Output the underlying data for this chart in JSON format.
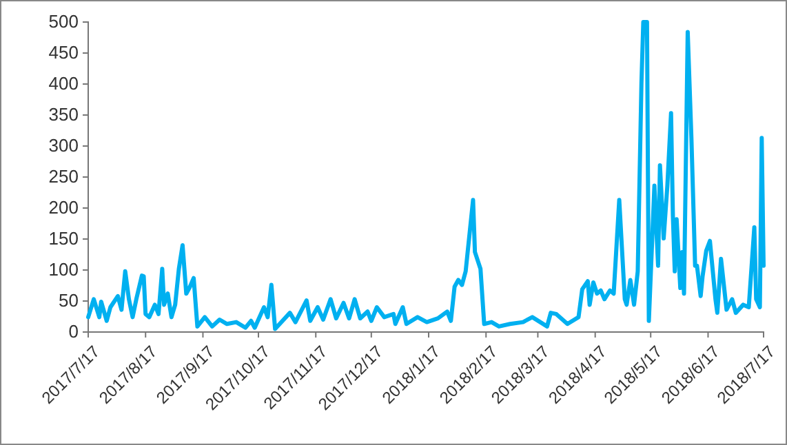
{
  "chart_data": {
    "type": "line",
    "xlim": [
      "2017-07-17",
      "2018-07-17"
    ],
    "ylim": [
      0,
      500
    ],
    "yticks": [
      0,
      50,
      100,
      150,
      200,
      250,
      300,
      350,
      400,
      450,
      500
    ],
    "xticks": [
      {
        "value": "2017-07-17",
        "label": "2017/7/17"
      },
      {
        "value": "2017-08-17",
        "label": "2017/8/17"
      },
      {
        "value": "2017-09-17",
        "label": "2017/9/17"
      },
      {
        "value": "2017-10-17",
        "label": "2017/10/17"
      },
      {
        "value": "2017-11-17",
        "label": "2017/11/17"
      },
      {
        "value": "2017-12-17",
        "label": "2017/12/17"
      },
      {
        "value": "2018-01-17",
        "label": "2018/1/17"
      },
      {
        "value": "2018-02-17",
        "label": "2018/2/17"
      },
      {
        "value": "2018-03-17",
        "label": "2018/3/17"
      },
      {
        "value": "2018-04-17",
        "label": "2018/4/17"
      },
      {
        "value": "2018-05-17",
        "label": "2018/5/17"
      },
      {
        "value": "2018-06-17",
        "label": "2018/6/17"
      },
      {
        "value": "2018-07-17",
        "label": "2018/7/17"
      }
    ],
    "grid": false,
    "marker": "none",
    "line_style": "solid",
    "series": [
      {
        "color": "#00b0f0",
        "x": [
          "2017-07-17",
          "2017-07-20",
          "2017-07-23",
          "2017-07-24",
          "2017-07-27",
          "2017-07-29",
          "2017-08-02",
          "2017-08-04",
          "2017-08-06",
          "2017-08-08",
          "2017-08-10",
          "2017-08-12",
          "2017-08-15",
          "2017-08-16",
          "2017-08-17",
          "2017-08-19",
          "2017-08-22",
          "2017-08-24",
          "2017-08-26",
          "2017-08-27",
          "2017-08-29",
          "2017-08-31",
          "2017-09-02",
          "2017-09-04",
          "2017-09-06",
          "2017-09-08",
          "2017-09-10",
          "2017-09-12",
          "2017-09-14",
          "2017-09-18",
          "2017-09-22",
          "2017-09-26",
          "2017-09-30",
          "2017-10-05",
          "2017-10-10",
          "2017-10-13",
          "2017-10-15",
          "2017-10-20",
          "2017-10-22",
          "2017-10-24",
          "2017-10-26",
          "2017-11-03",
          "2017-11-06",
          "2017-11-12",
          "2017-11-14",
          "2017-11-18",
          "2017-11-21",
          "2017-11-25",
          "2017-11-28",
          "2017-12-02",
          "2017-12-05",
          "2017-12-08",
          "2017-12-11",
          "2017-12-15",
          "2017-12-17",
          "2017-12-20",
          "2017-12-24",
          "2017-12-29",
          "2017-12-30",
          "2018-01-03",
          "2018-01-05",
          "2018-01-11",
          "2018-01-16",
          "2018-01-22",
          "2018-01-27",
          "2018-01-29",
          "2018-01-31",
          "2018-02-02",
          "2018-02-04",
          "2018-02-06",
          "2018-02-10",
          "2018-02-11",
          "2018-02-14",
          "2018-02-16",
          "2018-02-20",
          "2018-02-24",
          "2018-03-02",
          "2018-03-09",
          "2018-03-14",
          "2018-03-22",
          "2018-03-24",
          "2018-03-27",
          "2018-04-02",
          "2018-04-08",
          "2018-04-10",
          "2018-04-13",
          "2018-04-14",
          "2018-04-16",
          "2018-04-18",
          "2018-04-20",
          "2018-04-22",
          "2018-04-25",
          "2018-04-27",
          "2018-04-30",
          "2018-05-03",
          "2018-05-04",
          "2018-05-06",
          "2018-05-08",
          "2018-05-10",
          "2018-05-12",
          "2018-05-13",
          "2018-05-15",
          "2018-05-16",
          "2018-05-19",
          "2018-05-21",
          "2018-05-22",
          "2018-05-24",
          "2018-05-26",
          "2018-05-28",
          "2018-05-29",
          "2018-05-30",
          "2018-05-31",
          "2018-06-02",
          "2018-06-03",
          "2018-06-04",
          "2018-06-06",
          "2018-06-08",
          "2018-06-10",
          "2018-06-11",
          "2018-06-13",
          "2018-06-14",
          "2018-06-16",
          "2018-06-18",
          "2018-06-21",
          "2018-06-22",
          "2018-06-24",
          "2018-06-27",
          "2018-06-30",
          "2018-07-02",
          "2018-07-06",
          "2018-07-09",
          "2018-07-12",
          "2018-07-13",
          "2018-07-15",
          "2018-07-16",
          "2018-07-17"
        ],
        "values": [
          24,
          53,
          24,
          49,
          18,
          40,
          58,
          36,
          98,
          53,
          24,
          53,
          91,
          90,
          29,
          24,
          44,
          29,
          102,
          44,
          62,
          24,
          44,
          102,
          140,
          62,
          73,
          87,
          9,
          24,
          9,
          20,
          13,
          16,
          7,
          18,
          7,
          40,
          24,
          76,
          5,
          31,
          16,
          51,
          18,
          40,
          20,
          53,
          22,
          47,
          22,
          53,
          22,
          33,
          18,
          40,
          24,
          29,
          13,
          40,
          13,
          24,
          16,
          22,
          33,
          18,
          73,
          84,
          76,
          98,
          213,
          129,
          102,
          13,
          16,
          9,
          13,
          16,
          24,
          9,
          31,
          29,
          13,
          24,
          69,
          82,
          44,
          80,
          62,
          67,
          53,
          67,
          62,
          213,
          53,
          44,
          84,
          44,
          98,
          402,
          500,
          500,
          18,
          236,
          107,
          269,
          151,
          236,
          353,
          187,
          98,
          182,
          71,
          129,
          62,
          484,
          313,
          107,
          107,
          58,
          89,
          131,
          147,
          53,
          31,
          118,
          36,
          53,
          31,
          44,
          40,
          169,
          53,
          40,
          313,
          107
        ]
      }
    ]
  }
}
